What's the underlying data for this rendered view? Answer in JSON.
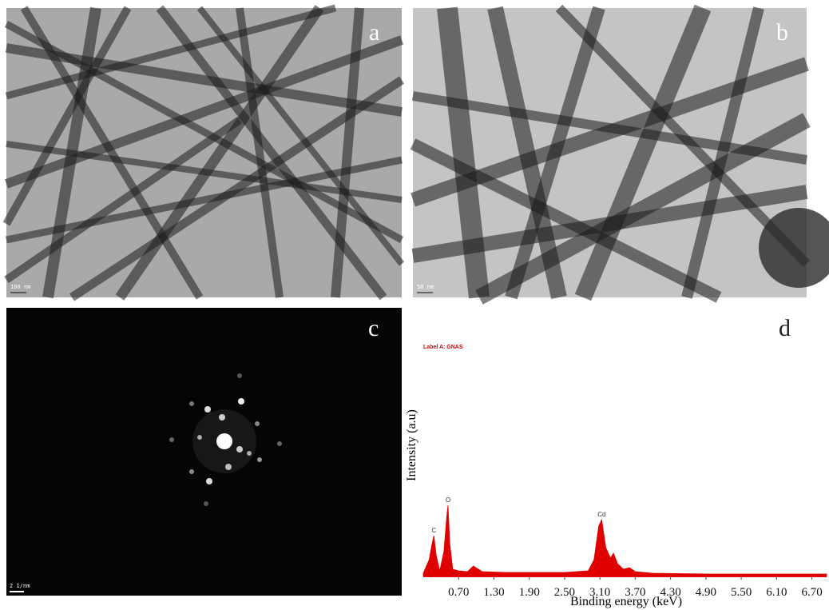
{
  "panels": [
    {
      "label": "a",
      "scale_bar": "100 nm"
    },
    {
      "label": "b",
      "scale_bar": "50 nm"
    },
    {
      "label": "c",
      "scale_bar": "2 1/nm"
    },
    {
      "label": "d"
    }
  ],
  "chart_data": {
    "type": "area",
    "title": "Label A: GNAS",
    "x_label": "Binding energy (keV)",
    "y_label": "Intensity (a.u)",
    "color": "#e00000",
    "x": [
      0.1,
      0.2,
      0.25,
      0.28,
      0.32,
      0.38,
      0.45,
      0.5,
      0.52,
      0.55,
      0.6,
      0.7,
      0.85,
      0.95,
      1.1,
      1.5,
      2.0,
      2.5,
      2.9,
      3.0,
      3.08,
      3.13,
      3.2,
      3.28,
      3.33,
      3.4,
      3.5,
      3.6,
      3.7,
      4.0,
      5.0,
      6.0,
      6.95
    ],
    "values": [
      3,
      20,
      40,
      50,
      25,
      6,
      30,
      75,
      88,
      40,
      8,
      6,
      5,
      12,
      5,
      4,
      4,
      4,
      6,
      20,
      62,
      70,
      35,
      22,
      28,
      15,
      8,
      10,
      5,
      3,
      2,
      2,
      2
    ],
    "xlim": [
      0.1,
      6.95
    ],
    "ylim": [
      0,
      100
    ],
    "xticks": [
      {
        "value": 0.7,
        "label": "0.70"
      },
      {
        "value": 1.3,
        "label": "1.30"
      },
      {
        "value": 1.9,
        "label": "1.90"
      },
      {
        "value": 2.5,
        "label": "2.50"
      },
      {
        "value": 3.1,
        "label": "3.10"
      },
      {
        "value": 3.7,
        "label": "3.70"
      },
      {
        "value": 4.3,
        "label": "4.30"
      },
      {
        "value": 4.9,
        "label": "4.90"
      },
      {
        "value": 5.5,
        "label": "5.50"
      },
      {
        "value": 6.1,
        "label": "6.10"
      },
      {
        "value": 6.7,
        "label": "6.70"
      }
    ],
    "annotations": [
      {
        "text": "C",
        "x": 0.28,
        "y": 50
      },
      {
        "text": "O",
        "x": 0.52,
        "y": 88
      },
      {
        "text": "Cd",
        "x": 3.13,
        "y": 70
      }
    ]
  }
}
